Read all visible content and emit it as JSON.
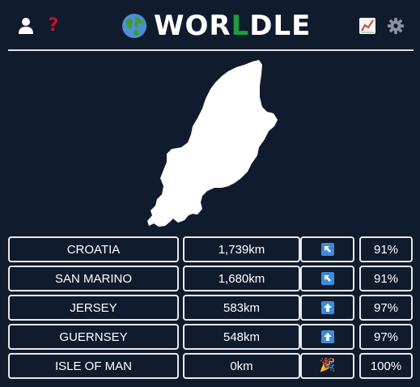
{
  "header": {
    "title_prefix": "WOR",
    "title_highlight": "L",
    "title_suffix": "DLE",
    "icons": {
      "user": "user-icon",
      "help": "question-icon",
      "help_glyph": "?",
      "stats": "stats-chart-icon",
      "settings": "gear-icon",
      "globe": "globe-icon"
    },
    "colors": {
      "background": "#111b2e",
      "highlight": "#1f9d3f",
      "help": "#c8102e",
      "arrow_box": "#3d8bd9"
    }
  },
  "map": {
    "country_shape": "isle-of-man-silhouette"
  },
  "guesses": [
    {
      "country": "CROATIA",
      "distance": "1,739km",
      "direction": "up-left-arrow",
      "proximity": "91%"
    },
    {
      "country": "SAN MARINO",
      "distance": "1,680km",
      "direction": "up-left-arrow",
      "proximity": "91%"
    },
    {
      "country": "JERSEY",
      "distance": "583km",
      "direction": "up-arrow",
      "proximity": "97%"
    },
    {
      "country": "GUERNSEY",
      "distance": "548km",
      "direction": "up-arrow",
      "proximity": "97%"
    },
    {
      "country": "ISLE OF MAN",
      "distance": "0km",
      "direction": "party-popper",
      "direction_glyph": "🎉",
      "proximity": "100%"
    }
  ]
}
